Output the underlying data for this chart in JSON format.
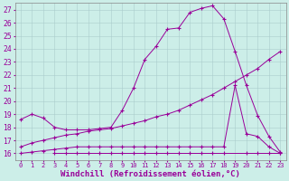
{
  "background_color": "#cceee8",
  "line_color": "#990099",
  "grid_color": "#aacccc",
  "xlabel": "Windchill (Refroidissement éolien,°C)",
  "xlabel_fontsize": 6.5,
  "tick_fontsize": 5.8,
  "xlim": [
    -0.5,
    23.5
  ],
  "ylim": [
    15.5,
    27.5
  ],
  "yticks": [
    16,
    17,
    18,
    19,
    20,
    21,
    22,
    23,
    24,
    25,
    26,
    27
  ],
  "xticks": [
    0,
    1,
    2,
    3,
    4,
    5,
    6,
    7,
    8,
    9,
    10,
    11,
    12,
    13,
    14,
    15,
    16,
    17,
    18,
    19,
    20,
    21,
    22,
    23
  ],
  "line1_x": [
    0,
    1,
    2,
    3,
    4,
    5,
    6,
    7,
    8,
    9,
    10,
    11,
    12,
    13,
    14,
    15,
    16,
    17,
    18,
    19,
    20,
    21,
    22,
    23
  ],
  "line1_y": [
    18.6,
    19.0,
    18.7,
    18.0,
    17.8,
    17.8,
    17.8,
    17.9,
    18.0,
    19.3,
    21.0,
    23.2,
    24.2,
    25.5,
    25.6,
    26.8,
    27.1,
    27.3,
    26.3,
    23.8,
    21.2,
    18.9,
    17.3,
    16.1
  ],
  "line2_x": [
    0,
    1,
    2,
    3,
    4,
    5,
    6,
    7,
    8,
    9,
    10,
    11,
    12,
    13,
    14,
    15,
    16,
    17,
    18,
    19,
    20,
    21,
    22,
    23
  ],
  "line2_y": [
    16.5,
    16.8,
    17.0,
    17.2,
    17.4,
    17.5,
    17.7,
    17.8,
    17.9,
    18.1,
    18.3,
    18.5,
    18.8,
    19.0,
    19.3,
    19.7,
    20.1,
    20.5,
    21.0,
    21.5,
    22.0,
    22.5,
    23.2,
    23.8
  ],
  "line3_x": [
    0,
    1,
    2,
    3,
    4,
    5,
    6,
    7,
    8,
    9,
    10,
    11,
    12,
    13,
    14,
    15,
    16,
    17,
    18,
    19,
    20,
    21,
    22,
    23
  ],
  "line3_y": [
    16.0,
    16.1,
    16.2,
    16.3,
    16.4,
    16.5,
    16.5,
    16.5,
    16.5,
    16.5,
    16.5,
    16.5,
    16.5,
    16.5,
    16.5,
    16.5,
    16.5,
    16.5,
    16.5,
    21.2,
    17.5,
    17.3,
    16.5,
    16.0
  ],
  "line4_x": [
    3,
    4,
    5,
    6,
    7,
    8,
    9,
    10,
    11,
    12,
    13,
    14,
    15,
    16,
    17,
    18,
    20,
    21,
    22,
    23
  ],
  "line4_y": [
    16.0,
    16.0,
    16.0,
    16.0,
    16.0,
    16.0,
    16.0,
    16.0,
    16.0,
    16.0,
    16.0,
    16.0,
    16.0,
    16.0,
    16.0,
    16.0,
    16.0,
    16.0,
    16.0,
    16.0
  ]
}
